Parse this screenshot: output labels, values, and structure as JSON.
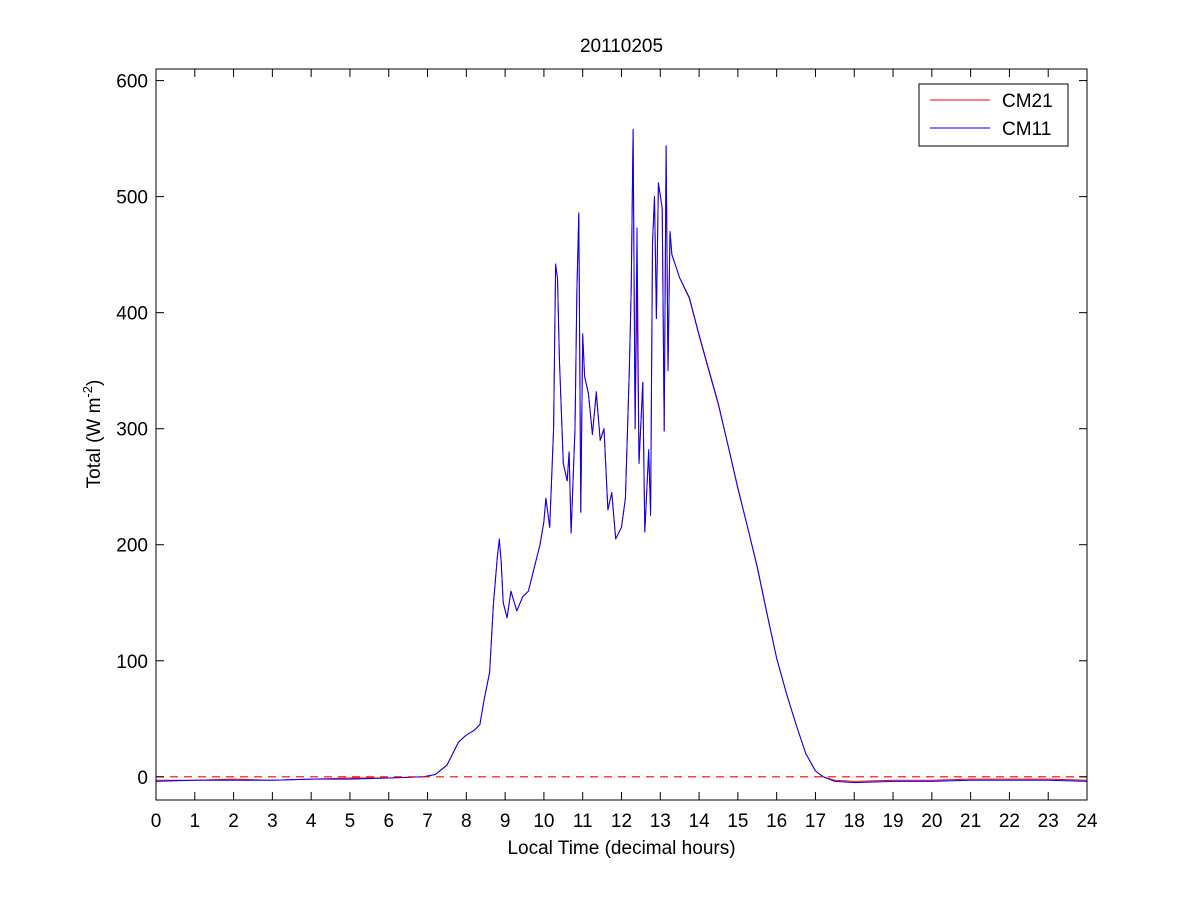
{
  "chart_data": {
    "type": "line",
    "title": "20110205",
    "xlabel": "Local Time (decimal hours)",
    "ylabel": "Total (W m",
    "ylabel_sup": "-2",
    "ylabel_close": ")",
    "xlim": [
      0,
      24
    ],
    "ylim": [
      -20,
      610
    ],
    "xticks": [
      0,
      1,
      2,
      3,
      4,
      5,
      6,
      7,
      8,
      9,
      10,
      11,
      12,
      13,
      14,
      15,
      16,
      17,
      18,
      19,
      20,
      21,
      22,
      23,
      24
    ],
    "yticks": [
      0,
      100,
      200,
      300,
      400,
      500,
      600
    ],
    "grid": false,
    "legend_position": "top-right",
    "reference_line": {
      "y": 0,
      "style": "dashed",
      "color": "#ff0000"
    },
    "series": [
      {
        "name": "CM21",
        "color": "#ff0000",
        "points": [
          [
            0,
            -3
          ],
          [
            1,
            -3
          ],
          [
            2,
            -2
          ],
          [
            3,
            -3
          ],
          [
            4,
            -2
          ],
          [
            5,
            -1
          ],
          [
            6,
            -1
          ],
          [
            6.9,
            0
          ],
          [
            7.2,
            2
          ],
          [
            7.5,
            10
          ],
          [
            7.8,
            30
          ],
          [
            8,
            36
          ],
          [
            8.2,
            40
          ],
          [
            8.35,
            45
          ],
          [
            8.45,
            65
          ],
          [
            8.6,
            90
          ],
          [
            8.7,
            150
          ],
          [
            8.8,
            190
          ],
          [
            8.85,
            204
          ],
          [
            8.9,
            185
          ],
          [
            8.95,
            150
          ],
          [
            9.05,
            137
          ],
          [
            9.15,
            160
          ],
          [
            9.3,
            143
          ],
          [
            9.45,
            155
          ],
          [
            9.6,
            160
          ],
          [
            9.75,
            180
          ],
          [
            9.9,
            200
          ],
          [
            10,
            220
          ],
          [
            10.05,
            240
          ],
          [
            10.15,
            215
          ],
          [
            10.25,
            300
          ],
          [
            10.3,
            440
          ],
          [
            10.35,
            430
          ],
          [
            10.4,
            360
          ],
          [
            10.5,
            270
          ],
          [
            10.6,
            255
          ],
          [
            10.65,
            280
          ],
          [
            10.7,
            210
          ],
          [
            10.8,
            300
          ],
          [
            10.85,
            420
          ],
          [
            10.9,
            485
          ],
          [
            10.95,
            228
          ],
          [
            11,
            380
          ],
          [
            11.05,
            345
          ],
          [
            11.15,
            330
          ],
          [
            11.25,
            295
          ],
          [
            11.35,
            330
          ],
          [
            11.45,
            290
          ],
          [
            11.55,
            300
          ],
          [
            11.65,
            230
          ],
          [
            11.75,
            245
          ],
          [
            11.85,
            205
          ],
          [
            12,
            215
          ],
          [
            12.1,
            240
          ],
          [
            12.2,
            350
          ],
          [
            12.25,
            420
          ],
          [
            12.3,
            557
          ],
          [
            12.35,
            300
          ],
          [
            12.4,
            420
          ],
          [
            12.45,
            270
          ],
          [
            12.55,
            340
          ],
          [
            12.6,
            211
          ],
          [
            12.7,
            280
          ],
          [
            12.75,
            230
          ],
          [
            12.8,
            460
          ],
          [
            12.85,
            500
          ],
          [
            12.9,
            395
          ],
          [
            12.95,
            511
          ],
          [
            13.05,
            490
          ],
          [
            13.1,
            298
          ],
          [
            13.15,
            543
          ],
          [
            13.2,
            350
          ],
          [
            13.25,
            470
          ],
          [
            13.3,
            450
          ],
          [
            13.5,
            430
          ],
          [
            13.75,
            412
          ],
          [
            14,
            380
          ],
          [
            14.25,
            350
          ],
          [
            14.5,
            320
          ],
          [
            14.75,
            285
          ],
          [
            15,
            248
          ],
          [
            15.25,
            215
          ],
          [
            15.5,
            180
          ],
          [
            15.75,
            140
          ],
          [
            16,
            102
          ],
          [
            16.25,
            72
          ],
          [
            16.5,
            45
          ],
          [
            16.75,
            20
          ],
          [
            17,
            5
          ],
          [
            17.2,
            0
          ],
          [
            17.5,
            -3
          ],
          [
            18,
            -4
          ],
          [
            19,
            -3
          ],
          [
            20,
            -3
          ],
          [
            21,
            -2
          ],
          [
            22,
            -2
          ],
          [
            23,
            -2
          ],
          [
            24,
            -3
          ]
        ]
      },
      {
        "name": "CM11",
        "color": "#0000ff",
        "points": [
          [
            0,
            -4
          ],
          [
            1,
            -3
          ],
          [
            2,
            -3
          ],
          [
            3,
            -3
          ],
          [
            4,
            -2
          ],
          [
            5,
            -2
          ],
          [
            6,
            -1
          ],
          [
            6.9,
            0
          ],
          [
            7.2,
            2
          ],
          [
            7.5,
            10
          ],
          [
            7.8,
            30
          ],
          [
            8,
            36
          ],
          [
            8.2,
            40
          ],
          [
            8.35,
            45
          ],
          [
            8.45,
            65
          ],
          [
            8.6,
            90
          ],
          [
            8.7,
            150
          ],
          [
            8.8,
            190
          ],
          [
            8.85,
            205
          ],
          [
            8.9,
            185
          ],
          [
            8.95,
            150
          ],
          [
            9.05,
            137
          ],
          [
            9.15,
            160
          ],
          [
            9.3,
            143
          ],
          [
            9.45,
            155
          ],
          [
            9.6,
            160
          ],
          [
            9.75,
            180
          ],
          [
            9.9,
            200
          ],
          [
            10,
            220
          ],
          [
            10.05,
            240
          ],
          [
            10.15,
            215
          ],
          [
            10.25,
            300
          ],
          [
            10.3,
            442
          ],
          [
            10.35,
            430
          ],
          [
            10.4,
            360
          ],
          [
            10.5,
            270
          ],
          [
            10.6,
            255
          ],
          [
            10.65,
            280
          ],
          [
            10.7,
            210
          ],
          [
            10.8,
            300
          ],
          [
            10.85,
            420
          ],
          [
            10.9,
            486
          ],
          [
            10.95,
            228
          ],
          [
            11,
            382
          ],
          [
            11.05,
            345
          ],
          [
            11.15,
            330
          ],
          [
            11.25,
            295
          ],
          [
            11.35,
            332
          ],
          [
            11.45,
            290
          ],
          [
            11.55,
            300
          ],
          [
            11.65,
            230
          ],
          [
            11.75,
            245
          ],
          [
            11.85,
            205
          ],
          [
            12,
            215
          ],
          [
            12.1,
            240
          ],
          [
            12.2,
            350
          ],
          [
            12.25,
            420
          ],
          [
            12.3,
            558
          ],
          [
            12.35,
            300
          ],
          [
            12.4,
            473
          ],
          [
            12.45,
            270
          ],
          [
            12.55,
            340
          ],
          [
            12.6,
            211
          ],
          [
            12.7,
            282
          ],
          [
            12.75,
            225
          ],
          [
            12.8,
            460
          ],
          [
            12.85,
            500
          ],
          [
            12.9,
            395
          ],
          [
            12.95,
            512
          ],
          [
            13.05,
            490
          ],
          [
            13.1,
            298
          ],
          [
            13.15,
            544
          ],
          [
            13.2,
            350
          ],
          [
            13.25,
            470
          ],
          [
            13.3,
            450
          ],
          [
            13.5,
            430
          ],
          [
            13.75,
            413
          ],
          [
            14,
            381
          ],
          [
            14.25,
            351
          ],
          [
            14.5,
            321
          ],
          [
            14.75,
            285
          ],
          [
            15,
            249
          ],
          [
            15.25,
            215
          ],
          [
            15.5,
            181
          ],
          [
            15.75,
            141
          ],
          [
            16,
            102
          ],
          [
            16.25,
            72
          ],
          [
            16.5,
            45
          ],
          [
            16.75,
            20
          ],
          [
            17,
            5
          ],
          [
            17.2,
            0
          ],
          [
            17.5,
            -4
          ],
          [
            18,
            -5
          ],
          [
            19,
            -4
          ],
          [
            20,
            -4
          ],
          [
            21,
            -3
          ],
          [
            22,
            -3
          ],
          [
            23,
            -3
          ],
          [
            24,
            -4
          ]
        ]
      }
    ]
  }
}
